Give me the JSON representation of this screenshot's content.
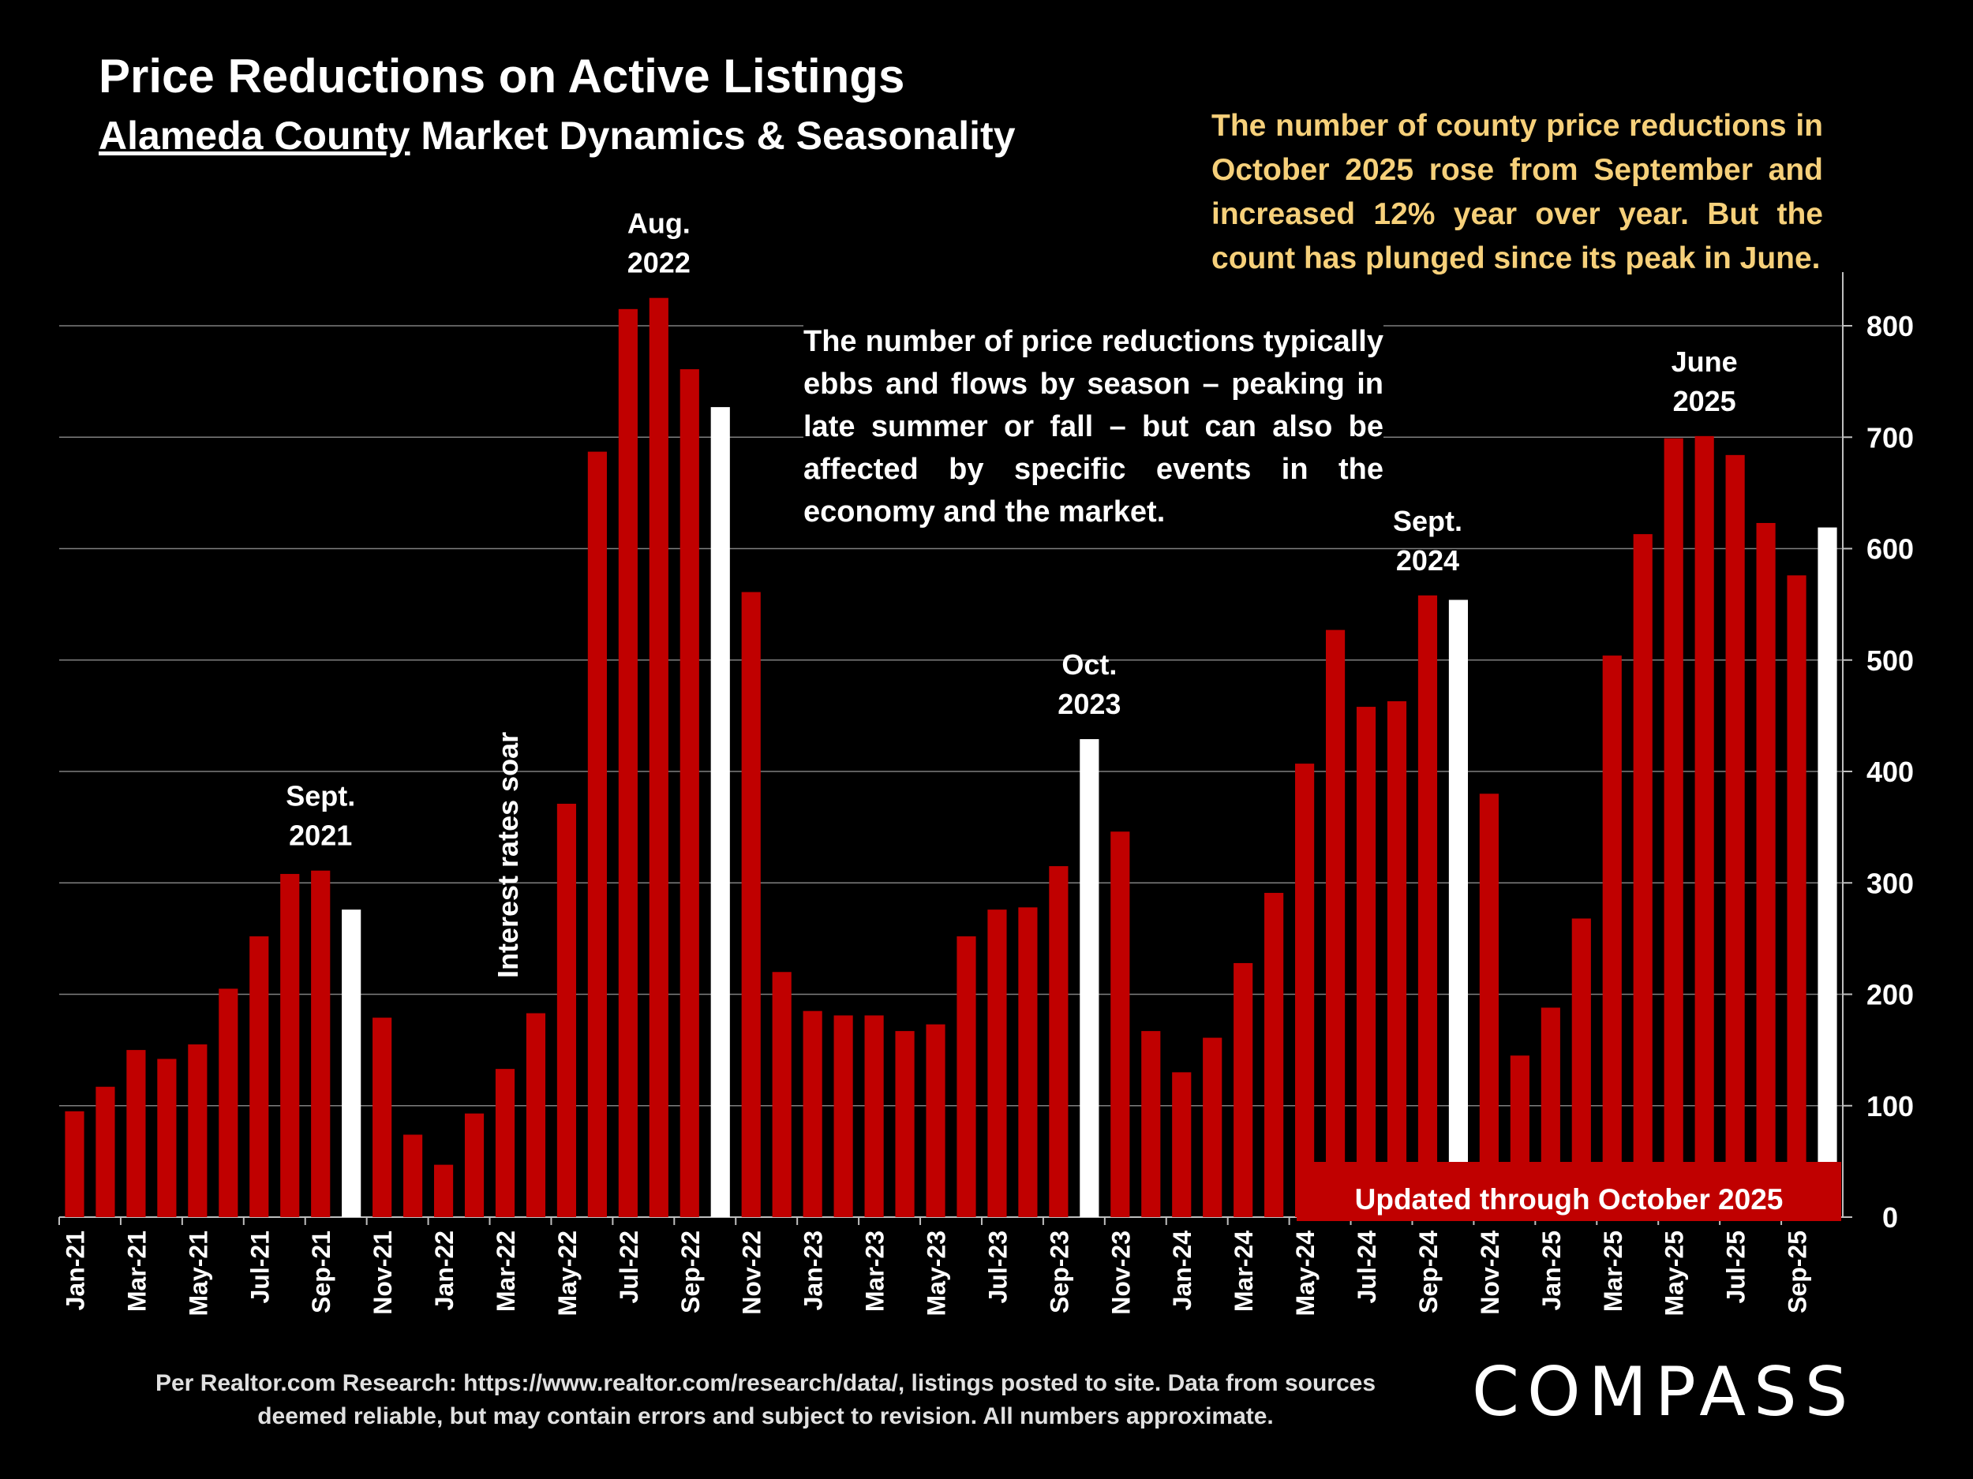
{
  "header": {
    "title": "Price Reductions on Active Listings",
    "subtitle_underlined": "Alameda County",
    "subtitle_rest": " Market Dynamics & Seasonality"
  },
  "notes": {
    "top_right": "The number of county price reductions in October 2025 rose from September and increased 12% year over year. But the count has plunged since its peak in June.",
    "center": "The number of price reductions typically ebbs and flows by season – peaking in late summer or fall – but can also be affected by specific events in the economy and the market.",
    "updated_banner": "Updated through October 2025"
  },
  "footer": {
    "source": "Per Realtor.com Research:  https://www.realtor.com/research/data/, listings posted to site. Data from sources deemed reliable, but may contain errors and subject to revision. All numbers approximate.",
    "logo": "COMPASS"
  },
  "colors": {
    "background": "#000000",
    "bar": "#c00000",
    "highlight_bar": "#ffffff",
    "note_text": "#f6d07a",
    "grid": "#7f7f7f"
  },
  "chart_data": {
    "type": "bar",
    "title": "Price Reductions on Active Listings",
    "x_tick_labels": [
      "Jan-21",
      "Mar-21",
      "May-21",
      "Jul-21",
      "Sep-21",
      "Nov-21",
      "Jan-22",
      "Mar-22",
      "May-22",
      "Jul-22",
      "Sep-22",
      "Nov-22",
      "Jan-23",
      "Mar-23",
      "May-23",
      "Jul-23",
      "Sep-23",
      "Nov-23",
      "Jan-24",
      "Mar-24",
      "May-24",
      "Jul-24",
      "Sep-24",
      "Nov-24",
      "Jan-25",
      "Mar-25",
      "May-25",
      "Jul-25",
      "Sep-25"
    ],
    "categories": [
      "Jan-21",
      "Feb-21",
      "Mar-21",
      "Apr-21",
      "May-21",
      "Jun-21",
      "Jul-21",
      "Aug-21",
      "Sep-21",
      "Oct-21",
      "Nov-21",
      "Dec-21",
      "Jan-22",
      "Feb-22",
      "Mar-22",
      "Apr-22",
      "May-22",
      "Jun-22",
      "Jul-22",
      "Aug-22",
      "Sep-22",
      "Oct-22",
      "Nov-22",
      "Dec-22",
      "Jan-23",
      "Feb-23",
      "Mar-23",
      "Apr-23",
      "May-23",
      "Jun-23",
      "Jul-23",
      "Aug-23",
      "Sep-23",
      "Oct-23",
      "Nov-23",
      "Dec-23",
      "Jan-24",
      "Feb-24",
      "Mar-24",
      "Apr-24",
      "May-24",
      "Jun-24",
      "Jul-24",
      "Aug-24",
      "Sep-24",
      "Oct-24",
      "Nov-24",
      "Dec-24",
      "Jan-25",
      "Feb-25",
      "Mar-25",
      "Apr-25",
      "May-25",
      "Jun-25",
      "Jul-25",
      "Aug-25",
      "Sep-25",
      "Oct-25"
    ],
    "values": [
      95,
      117,
      150,
      142,
      155,
      205,
      252,
      308,
      311,
      276,
      179,
      74,
      47,
      93,
      133,
      183,
      371,
      687,
      815,
      825,
      761,
      727,
      561,
      220,
      185,
      181,
      181,
      167,
      173,
      252,
      276,
      278,
      315,
      429,
      346,
      167,
      130,
      161,
      228,
      291,
      407,
      527,
      458,
      463,
      558,
      554,
      380,
      145,
      188,
      268,
      504,
      613,
      699,
      701,
      684,
      623,
      576,
      619
    ],
    "highlight_indices": [
      9,
      21,
      33,
      45,
      57
    ],
    "ylim": [
      0,
      850
    ],
    "yticks": [
      0,
      100,
      200,
      300,
      400,
      500,
      600,
      700,
      800
    ],
    "y_axis_side": "right",
    "grid": true,
    "annotations": [
      {
        "index": 8,
        "lines": [
          "Sept.",
          "2021"
        ]
      },
      {
        "index": 19,
        "lines": [
          "Aug.",
          "2022"
        ]
      },
      {
        "index": 33,
        "lines": [
          "Oct.",
          "2023"
        ]
      },
      {
        "index": 44,
        "lines": [
          "Sept.",
          "2024"
        ]
      },
      {
        "index": 53,
        "lines": [
          "June",
          "2025"
        ]
      }
    ],
    "event_label": {
      "index": 14,
      "text": "Interest rates soar"
    }
  }
}
